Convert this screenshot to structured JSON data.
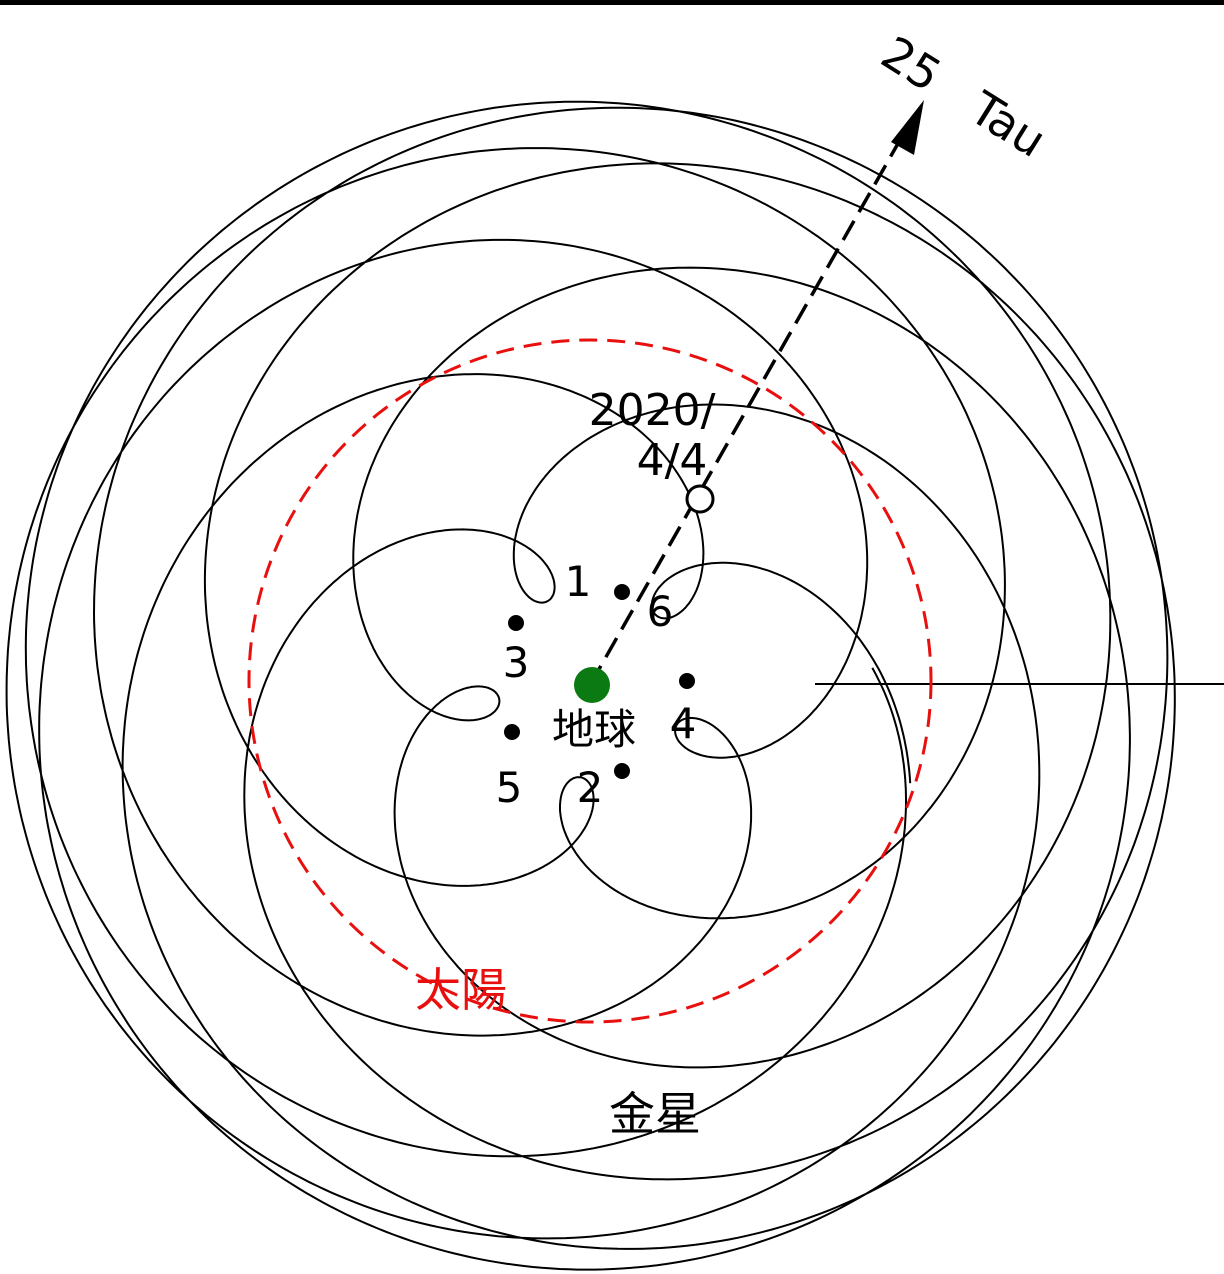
{
  "labels": {
    "star": "25　Tau",
    "date_line1": "2020/",
    "date_line2": "4/4",
    "earth": "地球",
    "sun": "太陽",
    "venus": "金星",
    "point_1": "1",
    "point_2": "2",
    "point_3": "3",
    "point_4": "4",
    "point_5": "5",
    "point_6": "6"
  },
  "colors": {
    "orbit": "#000000",
    "sun_orbit": "#e8100e",
    "sun_label": "#e8100e",
    "earth": "#0c7a12",
    "background": "#ffffff"
  }
}
